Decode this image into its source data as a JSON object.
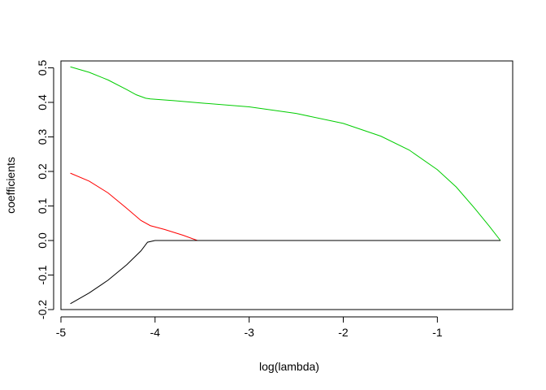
{
  "chart_data": {
    "type": "line",
    "title": "",
    "xlabel": "log(lambda)",
    "ylabel": "coefficients",
    "xlim": [
      -5.0,
      -0.2
    ],
    "ylim": [
      -0.2,
      0.52
    ],
    "xticks": [
      -5,
      -4,
      -3,
      -2,
      -1
    ],
    "xtick_labels": [
      "-5",
      "-4",
      "-3",
      "-2",
      "-1"
    ],
    "yticks": [
      -0.2,
      -0.1,
      0.0,
      0.1,
      0.2,
      0.3,
      0.4,
      0.5
    ],
    "ytick_labels": [
      "-0.2",
      "-0.1",
      "0.0",
      "0.1",
      "0.2",
      "0.3",
      "0.4",
      "0.5"
    ],
    "grid": false,
    "legend": "none",
    "series": [
      {
        "color": "#00cd00",
        "x": [
          -4.9,
          -4.7,
          -4.5,
          -4.3,
          -4.2,
          -4.1,
          -4.05,
          -3.8,
          -3.5,
          -3.0,
          -2.5,
          -2.0,
          -1.6,
          -1.3,
          -1.0,
          -0.8,
          -0.6,
          -0.45,
          -0.33
        ],
        "y": [
          0.503,
          0.487,
          0.465,
          0.437,
          0.422,
          0.412,
          0.41,
          0.405,
          0.398,
          0.387,
          0.368,
          0.339,
          0.302,
          0.262,
          0.205,
          0.155,
          0.092,
          0.042,
          0.0
        ]
      },
      {
        "color": "#ff0000",
        "x": [
          -4.9,
          -4.7,
          -4.5,
          -4.3,
          -4.15,
          -4.05,
          -3.9,
          -3.7,
          -3.55,
          -3.0,
          -2.0,
          -1.0,
          -0.33
        ],
        "y": [
          0.195,
          0.172,
          0.138,
          0.093,
          0.058,
          0.043,
          0.032,
          0.015,
          0.0,
          0.0,
          0.0,
          0.0,
          0.0
        ]
      },
      {
        "color": "#000000",
        "x": [
          -4.9,
          -4.7,
          -4.5,
          -4.3,
          -4.15,
          -4.08,
          -4.0,
          -3.9,
          -3.0,
          -2.0,
          -1.0,
          -0.33
        ],
        "y": [
          -0.183,
          -0.152,
          -0.115,
          -0.07,
          -0.03,
          -0.005,
          0.0,
          0.0,
          0.0,
          0.0,
          0.0,
          0.0
        ]
      }
    ]
  }
}
